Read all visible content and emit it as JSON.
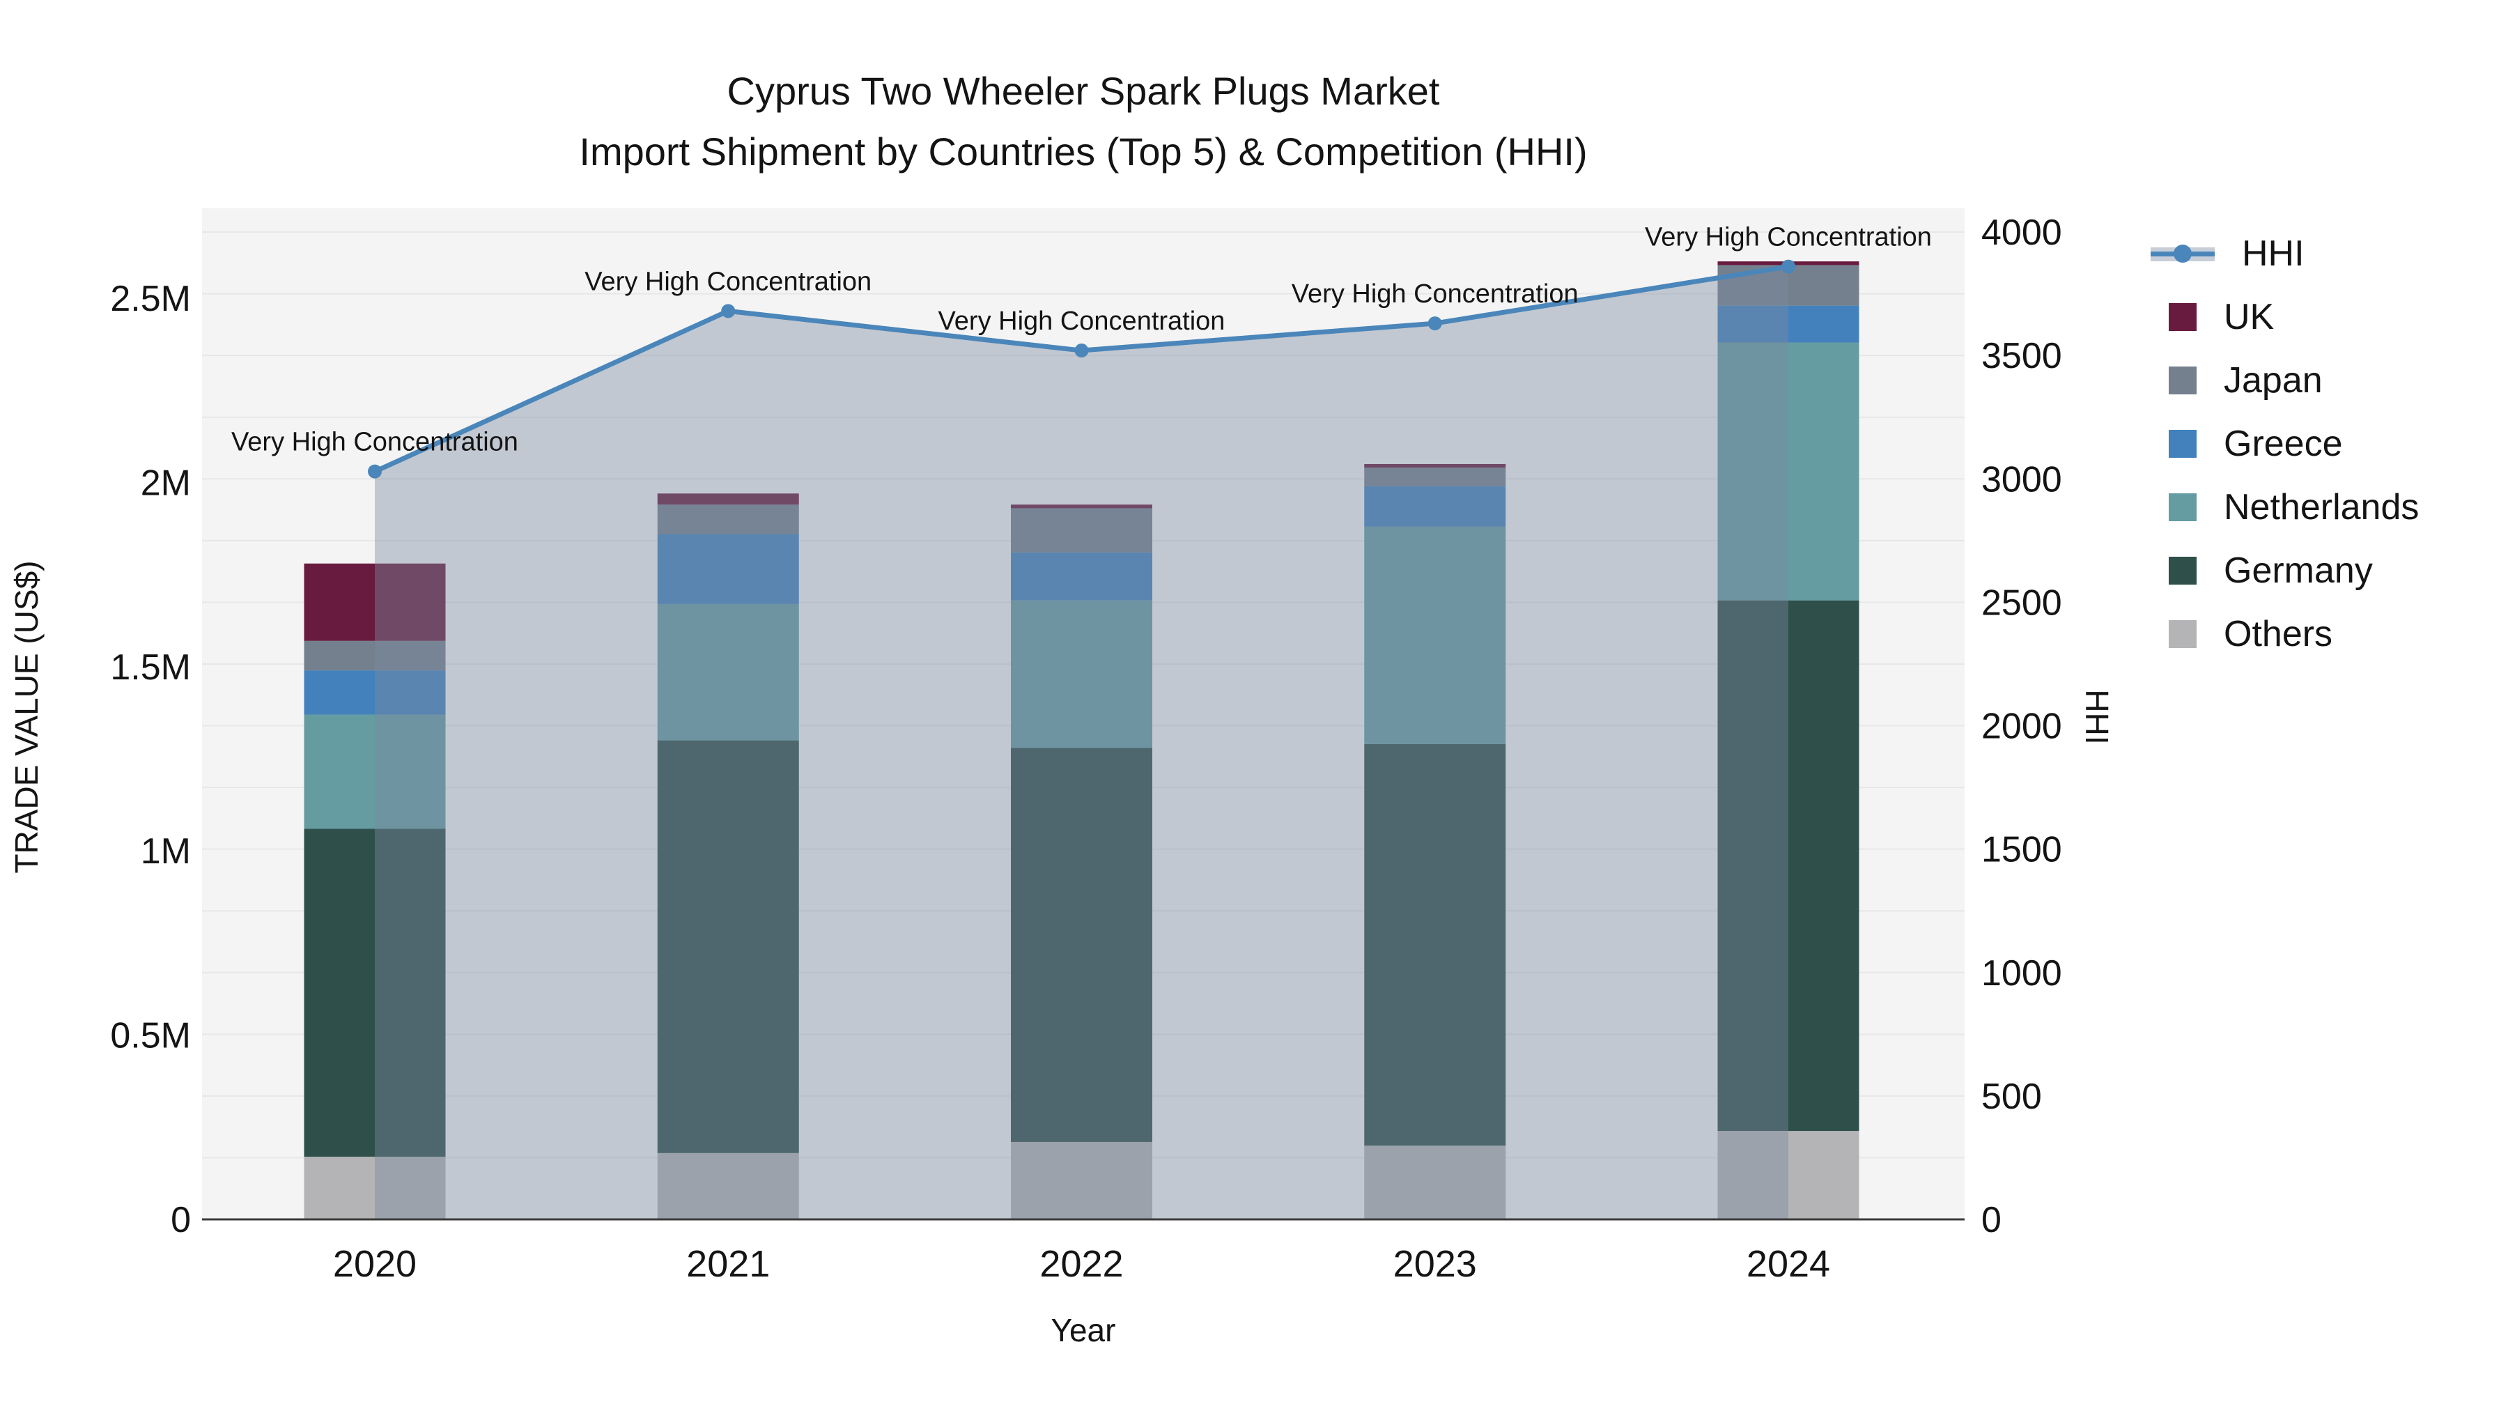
{
  "title": {
    "line1": "Cyprus Two Wheeler Spark Plugs Market",
    "line2": "Import Shipment by Countries (Top 5) & Competition (HHI)"
  },
  "axes": {
    "x": {
      "title": "Year",
      "ticks": [
        "2020",
        "2021",
        "2022",
        "2023",
        "2024"
      ]
    },
    "y_left": {
      "title": "TRADE VALUE (US$)",
      "tick_labels": [
        "0",
        "0.5M",
        "1M",
        "1.5M",
        "2M",
        "2.5M"
      ],
      "tick_values": [
        0,
        0.5,
        1,
        1.5,
        2,
        2.5
      ],
      "range": [
        0,
        2.744
      ]
    },
    "y_right": {
      "title": "HHI",
      "tick_labels": [
        "0",
        "500",
        "1000",
        "1500",
        "2000",
        "2500",
        "3000",
        "3500",
        "4000"
      ],
      "tick_values": [
        0,
        500,
        1000,
        1500,
        2000,
        2500,
        3000,
        3500,
        4000
      ],
      "range": [
        0,
        4096
      ],
      "grid_step": 250
    }
  },
  "legend": {
    "items": [
      {
        "label": "HHI",
        "type": "line",
        "color": "#4A86BA"
      },
      {
        "label": "UK",
        "type": "square",
        "color": "#681B3E"
      },
      {
        "label": "Japan",
        "type": "square",
        "color": "#74808D"
      },
      {
        "label": "Greece",
        "type": "square",
        "color": "#4381BC"
      },
      {
        "label": "Netherlands",
        "type": "square",
        "color": "#649CA2"
      },
      {
        "label": "Germany",
        "type": "square",
        "color": "#2E4F4A"
      },
      {
        "label": "Others",
        "type": "square",
        "color": "#B4B4B6"
      }
    ]
  },
  "chart_data": {
    "type": "bar",
    "subtype": "stacked-bars-with-line",
    "categories": [
      "2020",
      "2021",
      "2022",
      "2023",
      "2024"
    ],
    "bar_units": "million US$",
    "series": [
      {
        "name": "Others",
        "color": "#B4B4B6",
        "values": [
          0.17,
          0.18,
          0.21,
          0.2,
          0.24
        ]
      },
      {
        "name": "Germany",
        "color": "#2E4F4A",
        "values": [
          0.89,
          1.12,
          1.07,
          1.09,
          1.44
        ]
      },
      {
        "name": "Netherlands",
        "color": "#649CA2",
        "values": [
          0.31,
          0.37,
          0.4,
          0.59,
          0.7
        ]
      },
      {
        "name": "Greece",
        "color": "#4381BC",
        "values": [
          0.12,
          0.19,
          0.13,
          0.11,
          0.1
        ]
      },
      {
        "name": "Japan",
        "color": "#74808D",
        "values": [
          0.08,
          0.08,
          0.12,
          0.05,
          0.11
        ]
      },
      {
        "name": "UK",
        "color": "#681B3E",
        "values": [
          0.21,
          0.03,
          0.01,
          0.01,
          0.01
        ]
      }
    ],
    "bar_totals": [
      1.78,
      1.97,
      1.94,
      2.05,
      2.6
    ],
    "line": {
      "name": "HHI",
      "color": "#4A86BA",
      "area_fill": "rgba(125,138,160,0.42)",
      "values": [
        3030,
        3680,
        3520,
        3630,
        3860
      ]
    },
    "annotations": [
      "Very High Concentration",
      "Very High Concentration",
      "Very High Concentration",
      "Very High Concentration",
      "Very High Concentration"
    ],
    "styles": {
      "plot_bg": "#F4F4F4",
      "grid_color": "#E7E7E7",
      "axis_line_color": "#3B3B3B",
      "text_color": "#141414"
    }
  }
}
